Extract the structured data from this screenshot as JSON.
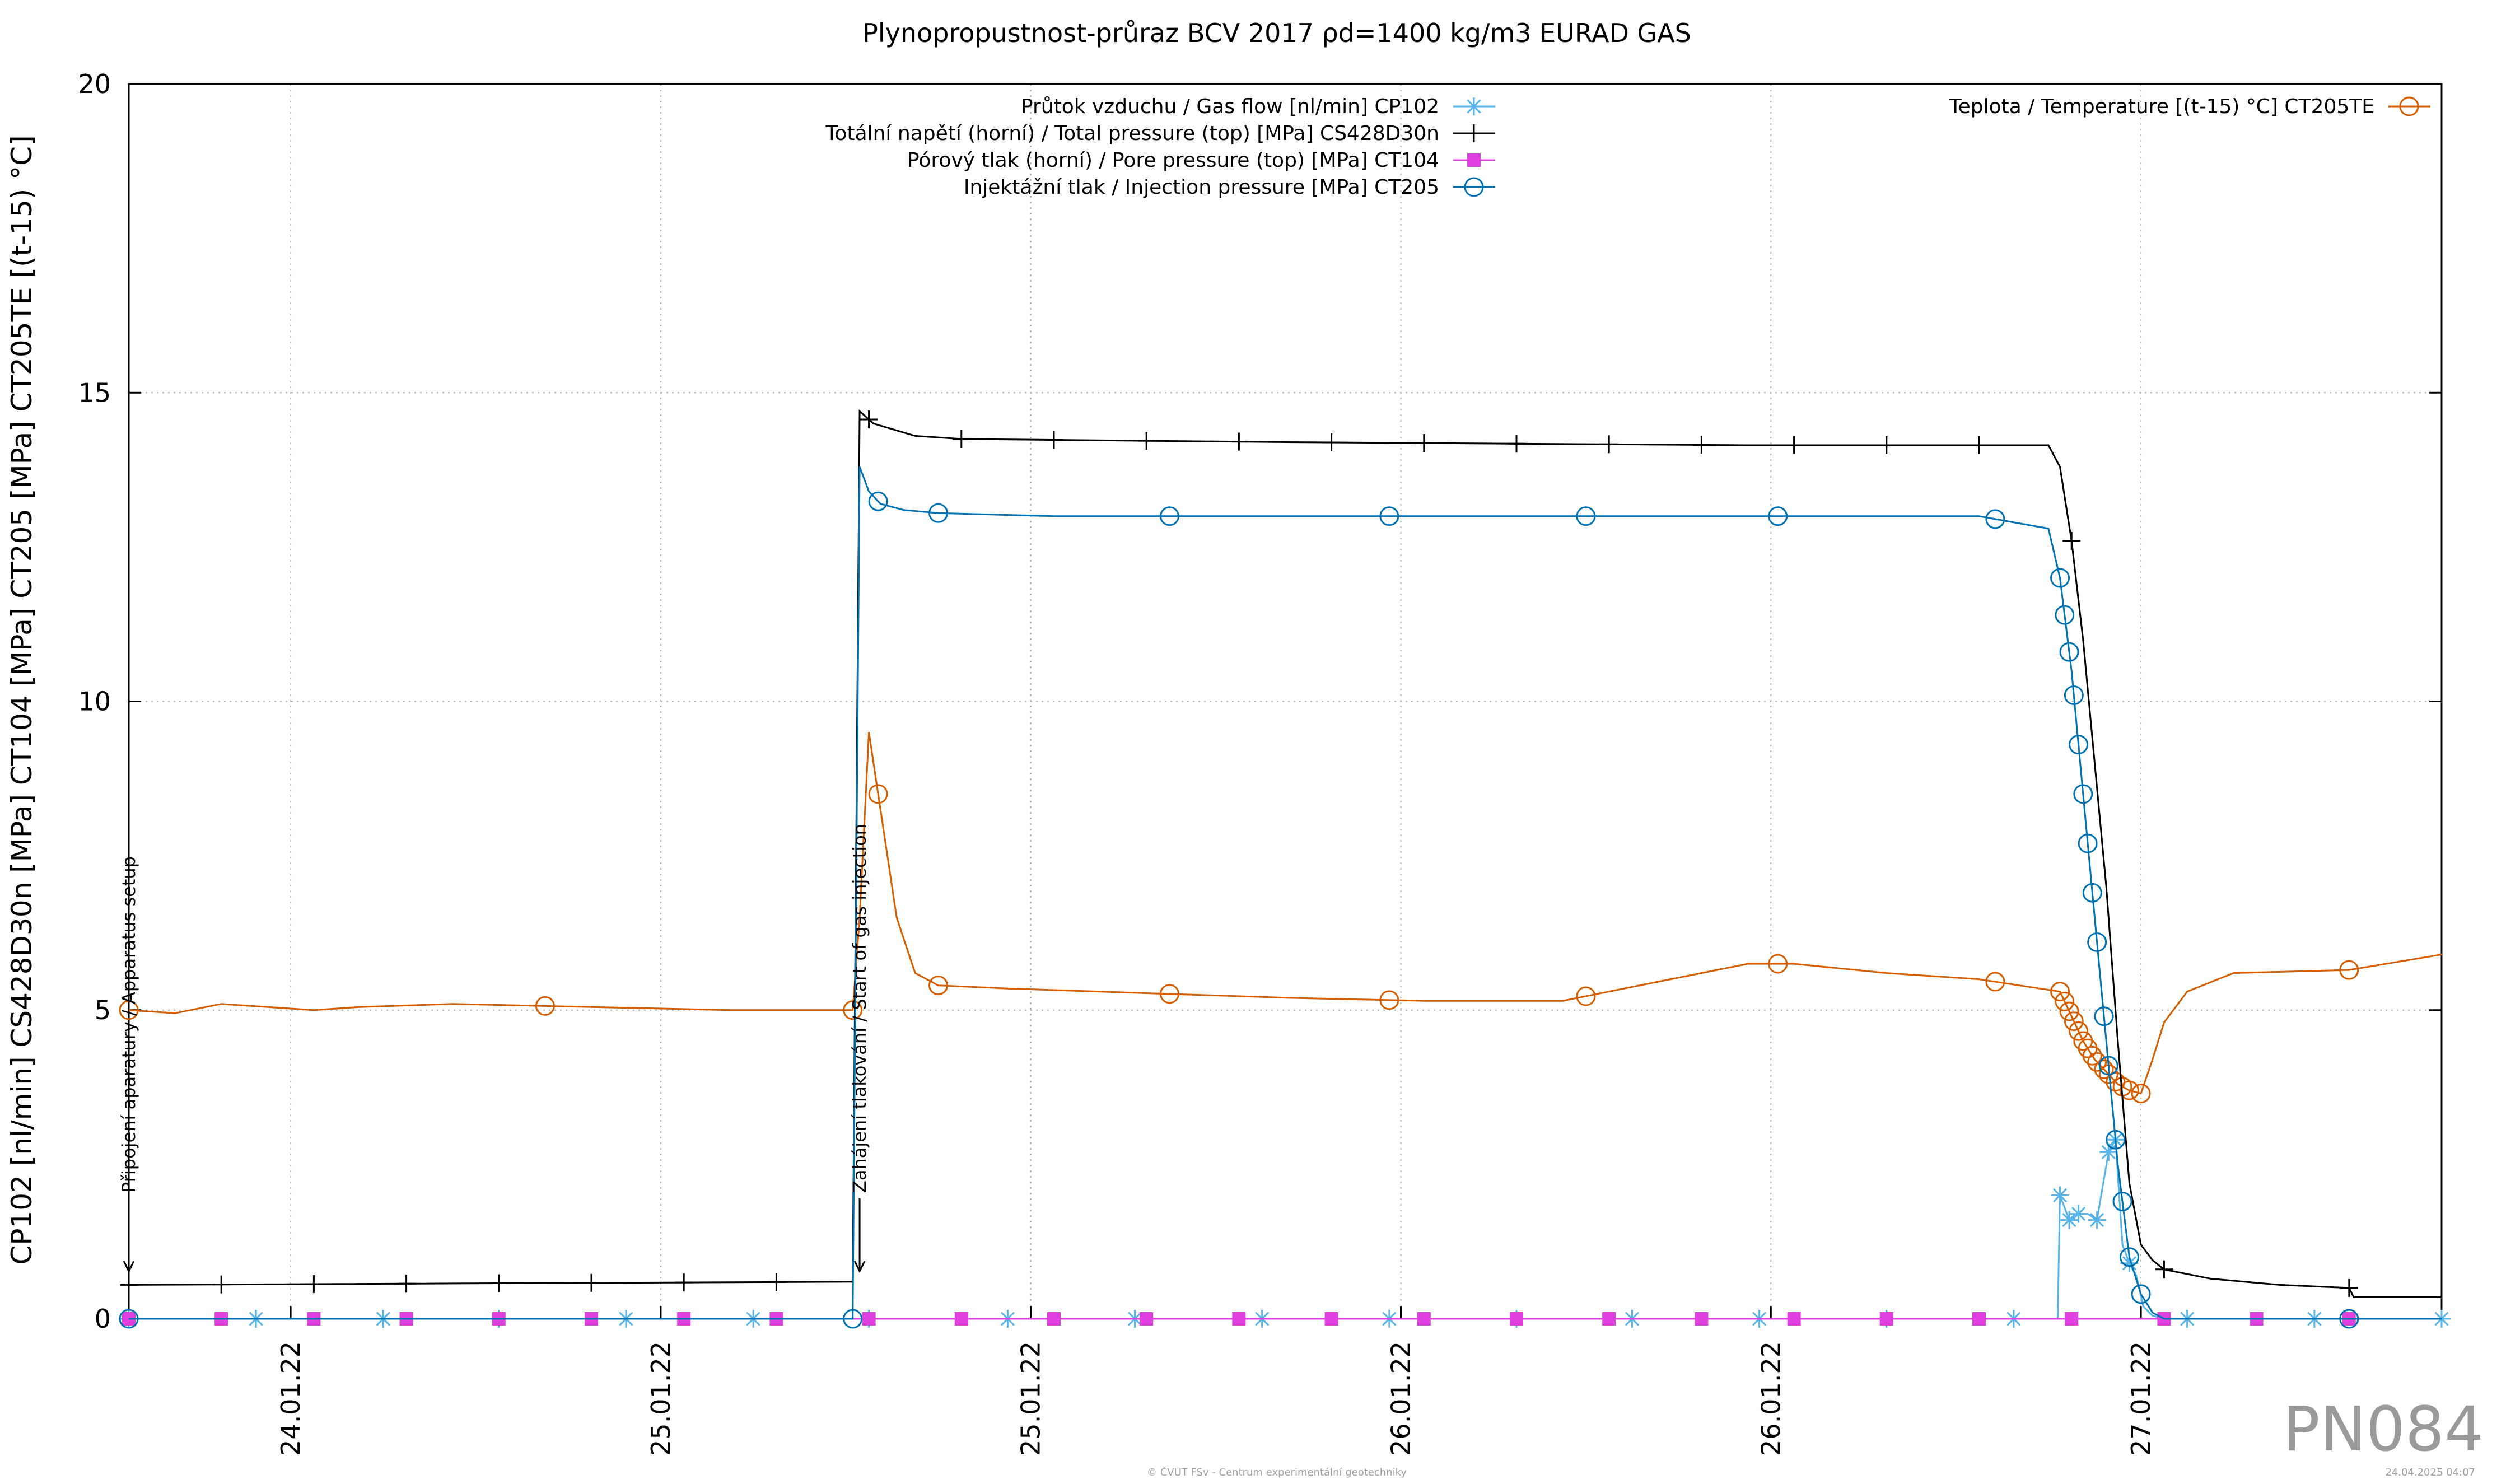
{
  "chart_data": {
    "type": "line",
    "title": "Plynopropustnost-průraz BCV 2017 ρd=1400 kg/m3 EURAD GAS",
    "ylabel": "CP102 [nl/min] CS428D30n [MPa] CT104 [MPa] CT205 [MPa] CT205TE [(t-15) °C]",
    "ylim": [
      0,
      20
    ],
    "xlim": [
      0,
      100
    ],
    "y_ticks": [
      "0",
      "5",
      "10",
      "15",
      "20"
    ],
    "x_tick_labels": [
      {
        "x": 7,
        "label": "24.01.22"
      },
      {
        "x": 23,
        "label": "25.01.22"
      },
      {
        "x": 39,
        "label": "25.01.22"
      },
      {
        "x": 55,
        "label": "26.01.22"
      },
      {
        "x": 71,
        "label": "26.01.22"
      },
      {
        "x": 87,
        "label": "27.01.22"
      }
    ],
    "grid": true,
    "annotations": [
      {
        "x": 0,
        "text": "Připojení aparatury / Apparatus setup"
      },
      {
        "x": 31.6,
        "text": "Zahájení tlakování / Start of gas injection"
      }
    ],
    "series": [
      {
        "name": "Průtok vzduchu / Gas flow [nl/min] CP102",
        "color": "#56b4e9",
        "marker": "star",
        "x": [
          0,
          5.5,
          11,
          16,
          21.5,
          27,
          32,
          38,
          43.5,
          49,
          54.5,
          60,
          65,
          70.5,
          76,
          81.5,
          83.4,
          83.5,
          83.9,
          84.3,
          84.7,
          85.1,
          85.6,
          85.9,
          86.2,
          86.5,
          86.8,
          87.1,
          87.5,
          88,
          89,
          94.5,
          100
        ],
        "y": [
          0,
          0,
          0,
          0,
          0,
          0,
          0,
          0,
          0,
          0,
          0,
          0,
          0,
          0,
          0,
          0,
          0,
          2.0,
          1.6,
          1.7,
          1.7,
          1.6,
          2.7,
          2.9,
          1.2,
          0.9,
          0.7,
          0.2,
          0.05,
          0,
          0,
          0,
          0
        ],
        "mark_x": [
          0,
          5.5,
          11,
          16,
          21.5,
          27,
          32,
          38,
          43.5,
          49,
          54.5,
          60,
          65,
          70.5,
          76,
          81.5,
          83.5,
          83.9,
          84.3,
          85.1,
          85.6,
          85.9,
          86.5,
          89,
          94.5,
          100
        ]
      },
      {
        "name": "Totální napětí (horní) / Total pressure (top) [MPa] CS428D30n",
        "color": "#000000",
        "marker": "plus",
        "x": [
          0,
          31.3,
          31.6,
          32.2,
          34,
          36,
          50,
          70,
          83.0,
          83.5,
          84.0,
          84.5,
          85.0,
          85.5,
          86.0,
          86.5,
          87.0,
          87.5,
          88.0,
          90,
          93,
          96,
          96.2,
          100
        ],
        "y": [
          0.55,
          0.6,
          14.7,
          14.5,
          14.3,
          14.25,
          14.2,
          14.15,
          14.15,
          13.8,
          12.6,
          11.0,
          9.0,
          7.0,
          4.5,
          2.2,
          1.2,
          0.95,
          0.8,
          0.65,
          0.55,
          0.5,
          0.35,
          0.35
        ],
        "mark_x": [
          0,
          4,
          8,
          12,
          16,
          20,
          24,
          28,
          32,
          36,
          40,
          44,
          48,
          52,
          56,
          60,
          64,
          68,
          72,
          76,
          80,
          84,
          88,
          96
        ]
      },
      {
        "name": "Pórový tlak (horní) / Pore pressure (top) [MPa] CT104",
        "color": "#e040e0",
        "marker": "square",
        "x": [
          0,
          100
        ],
        "y": [
          0,
          0
        ],
        "mark_x": [
          0,
          4,
          8,
          12,
          16,
          20,
          24,
          28,
          32,
          36,
          40,
          44,
          48,
          52,
          56,
          60,
          64,
          68,
          72,
          76,
          80,
          84,
          88,
          92,
          96
        ]
      },
      {
        "name": "Injektážní tlak / Injection pressure [MPa] CT205",
        "color": "#0072b2",
        "marker": "circle",
        "x": [
          0,
          31.3,
          31.6,
          32.0,
          32.5,
          33.5,
          35,
          40,
          50,
          60,
          70,
          80,
          83.0,
          83.5,
          84.0,
          84.5,
          85.0,
          85.5,
          86.0,
          86.5,
          87.0,
          87.5,
          88,
          91,
          95,
          100
        ],
        "y": [
          0,
          0,
          13.8,
          13.4,
          13.2,
          13.1,
          13.05,
          13.0,
          13.0,
          13.0,
          13.0,
          13.0,
          12.8,
          12.0,
          10.5,
          8.5,
          6.5,
          4.5,
          2.5,
          1.0,
          0.4,
          0.1,
          0,
          0,
          0,
          0
        ],
        "mark_x": [
          0,
          31.3,
          32.4,
          35,
          45,
          54.5,
          63,
          71.3,
          80.7,
          83.5,
          83.7,
          83.9,
          84.1,
          84.3,
          84.5,
          84.7,
          84.9,
          85.1,
          85.4,
          85.6,
          85.9,
          86.2,
          86.5,
          87.0,
          96
        ]
      },
      {
        "name": "Teplota / Temperature [(t-15) °C] CT205TE",
        "color": "#d55e00",
        "marker": "circle",
        "x": [
          0,
          2,
          4,
          6,
          8,
          10,
          14,
          20,
          26,
          31.3,
          31.6,
          32.0,
          32.6,
          33.2,
          34,
          35,
          38,
          42,
          46,
          50,
          56,
          62,
          66,
          68,
          70,
          72,
          76,
          80,
          83.5,
          84.0,
          84.5,
          85.0,
          85.5,
          86.0,
          86.5,
          87.0,
          87.5,
          88,
          89,
          91,
          96,
          100
        ],
        "y": [
          5.0,
          4.95,
          5.1,
          5.05,
          5.0,
          5.05,
          5.1,
          5.05,
          5.0,
          5.0,
          6.5,
          9.5,
          8.0,
          6.5,
          5.6,
          5.4,
          5.35,
          5.3,
          5.25,
          5.2,
          5.15,
          5.15,
          5.45,
          5.6,
          5.75,
          5.75,
          5.6,
          5.5,
          5.3,
          4.9,
          4.5,
          4.2,
          4.0,
          3.8,
          3.7,
          3.65,
          4.2,
          4.8,
          5.3,
          5.6,
          5.65,
          5.9
        ],
        "mark_x": [
          0,
          18,
          31.3,
          32.4,
          35,
          45,
          54.5,
          63,
          71.3,
          80.7,
          83.5,
          83.7,
          83.9,
          84.1,
          84.3,
          84.5,
          84.7,
          84.9,
          85.1,
          85.4,
          85.6,
          85.9,
          86.2,
          86.5,
          87.0,
          96
        ]
      }
    ]
  },
  "watermark": "PN084",
  "footer_center": "© ČVUT FSv - Centrum experimentální geotechniky",
  "footer_right": "24.04.2025 04:07"
}
